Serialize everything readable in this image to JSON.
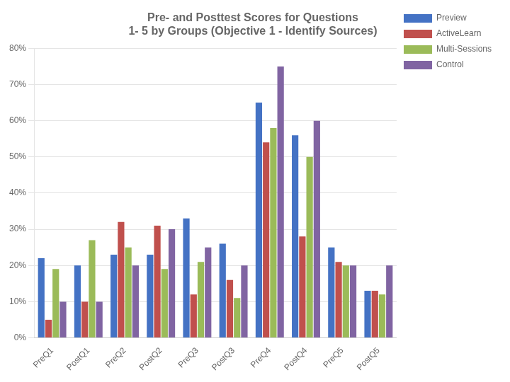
{
  "chart_data": {
    "type": "bar",
    "title": "Pre- and Posttest Scores for Questions\n1- 5 by Groups (Objective 1 - Identify Sources)",
    "categories": [
      "PreQ1",
      "PostQ1",
      "PreQ2",
      "PostQ2",
      "PreQ3",
      "PostQ3",
      "PreQ4",
      "PostQ4",
      "PreQ5",
      "PostQ5"
    ],
    "series": [
      {
        "name": "Preview",
        "color": "#4472C4",
        "values": [
          0.22,
          0.2,
          0.23,
          0.23,
          0.33,
          0.26,
          0.65,
          0.56,
          0.25,
          0.13
        ]
      },
      {
        "name": "ActiveLearn",
        "color": "#C0504D",
        "values": [
          0.05,
          0.1,
          0.32,
          0.31,
          0.12,
          0.16,
          0.54,
          0.28,
          0.21,
          0.13
        ]
      },
      {
        "name": "Multi-Sessions",
        "color": "#9BBB59",
        "values": [
          0.19,
          0.27,
          0.25,
          0.19,
          0.21,
          0.11,
          0.58,
          0.5,
          0.2,
          0.12
        ]
      },
      {
        "name": "Control",
        "color": "#8064A2",
        "values": [
          0.1,
          0.1,
          0.2,
          0.3,
          0.25,
          0.2,
          0.75,
          0.6,
          0.2,
          0.2
        ]
      }
    ],
    "ylim": [
      0,
      0.8
    ],
    "yticks": [
      {
        "value": 0,
        "label": "0%"
      },
      {
        "value": 0.1,
        "label": "10%"
      },
      {
        "value": 0.2,
        "label": "20%"
      },
      {
        "value": 0.3,
        "label": "30%"
      },
      {
        "value": 0.4,
        "label": "40%"
      },
      {
        "value": 0.5,
        "label": "50%"
      },
      {
        "value": 0.6,
        "label": "60%"
      },
      {
        "value": 0.7,
        "label": "70%"
      },
      {
        "value": 0.8,
        "label": "80%"
      }
    ],
    "grid": true,
    "legend": "right"
  }
}
